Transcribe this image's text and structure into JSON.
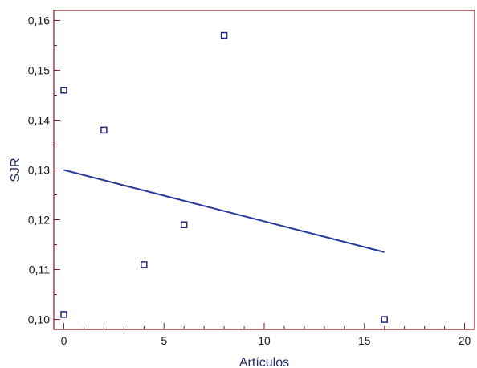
{
  "chart_data": {
    "type": "scatter",
    "title": "",
    "xlabel": "Artículos",
    "ylabel": "SJR",
    "xlim": [
      -0.5,
      20.5
    ],
    "ylim": [
      0.098,
      0.162
    ],
    "x_ticks": [
      0,
      5,
      10,
      15,
      20
    ],
    "x_tick_labels": [
      "0",
      "5",
      "10",
      "15",
      "20"
    ],
    "y_ticks": [
      0.1,
      0.11,
      0.12,
      0.13,
      0.14,
      0.15,
      0.16
    ],
    "y_tick_labels": [
      "0,10",
      "0,11",
      "0,12",
      "0,13",
      "0,14",
      "0,15",
      "0,16"
    ],
    "grid": false,
    "series": [
      {
        "points": [
          {
            "x": 0,
            "y": 0.146
          },
          {
            "x": 0,
            "y": 0.101
          },
          {
            "x": 2,
            "y": 0.138
          },
          {
            "x": 4,
            "y": 0.111
          },
          {
            "x": 6,
            "y": 0.119
          },
          {
            "x": 8,
            "y": 0.157
          },
          {
            "x": 16,
            "y": 0.1
          }
        ]
      }
    ],
    "fit_line": {
      "x": [
        0,
        16
      ],
      "y": [
        0.13,
        0.1135
      ]
    },
    "colors": {
      "frame": "#7a1a22",
      "marker": "#1f2a7a",
      "line": "#2a3a9a",
      "label": "#222a6a"
    }
  }
}
